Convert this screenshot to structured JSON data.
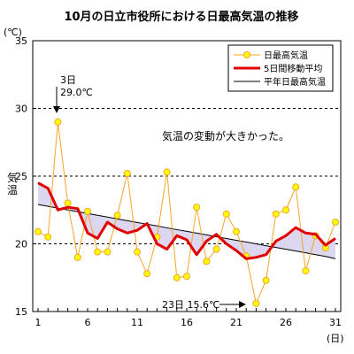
{
  "chart_data": {
    "type": "line",
    "title": "10月の日立市役所における日最高気温の推移",
    "ylabel": "気温",
    "y_unit": "(℃)",
    "x_unit": "(日)",
    "ylim": [
      15,
      35
    ],
    "xlim": [
      1,
      31
    ],
    "y_ticks": [
      15,
      20,
      25,
      30,
      35
    ],
    "x_ticks": [
      1,
      6,
      11,
      16,
      21,
      26,
      31
    ],
    "y_gridlines": [
      20,
      25,
      30
    ],
    "grid": "horizontal dashed at 20, 25, 30",
    "legend_placement": "top-right",
    "x": [
      1,
      2,
      3,
      4,
      5,
      6,
      7,
      8,
      9,
      10,
      11,
      12,
      13,
      14,
      15,
      16,
      17,
      18,
      19,
      20,
      21,
      22,
      23,
      24,
      25,
      26,
      27,
      28,
      29,
      30,
      31
    ],
    "series": [
      {
        "name": "日最高気温",
        "color": "#f5a623",
        "values": [
          20.9,
          20.5,
          29.0,
          23.0,
          19.0,
          22.4,
          19.4,
          19.4,
          22.1,
          25.2,
          19.4,
          17.8,
          20.5,
          25.3,
          17.5,
          17.6,
          22.7,
          18.7,
          19.6,
          22.2,
          20.9,
          19.1,
          15.6,
          17.3,
          22.2,
          22.5,
          24.2,
          18.0,
          20.6,
          19.7,
          21.6
        ]
      },
      {
        "name": "5日間移動平均",
        "color": "#e00000",
        "values": [
          24.5,
          24.1,
          22.5,
          22.7,
          22.6,
          20.8,
          20.4,
          21.6,
          21.1,
          20.8,
          21.0,
          21.5,
          20.0,
          19.6,
          20.6,
          20.3,
          19.2,
          20.2,
          20.7,
          20.0,
          19.5,
          18.9,
          19.0,
          19.2,
          20.2,
          20.6,
          21.2,
          20.8,
          20.7,
          19.9,
          20.4
        ]
      },
      {
        "name": "平年日最高気温",
        "color": "#000000",
        "values": [
          22.9,
          22.77,
          22.64,
          22.5,
          22.37,
          22.24,
          22.11,
          21.98,
          21.84,
          21.71,
          21.58,
          21.45,
          21.32,
          21.18,
          21.05,
          20.92,
          20.79,
          20.66,
          20.52,
          20.39,
          20.26,
          20.13,
          20.0,
          19.86,
          19.73,
          19.6,
          19.47,
          19.34,
          19.2,
          19.07,
          18.9
        ]
      }
    ],
    "annotations": [
      {
        "text": "3日",
        "sub": "29.0℃",
        "day": 3,
        "value": 29.0
      },
      {
        "text": "気温の変動が大きかった。"
      },
      {
        "text": "23日 15.6℃",
        "day": 23,
        "value": 15.6
      }
    ]
  }
}
